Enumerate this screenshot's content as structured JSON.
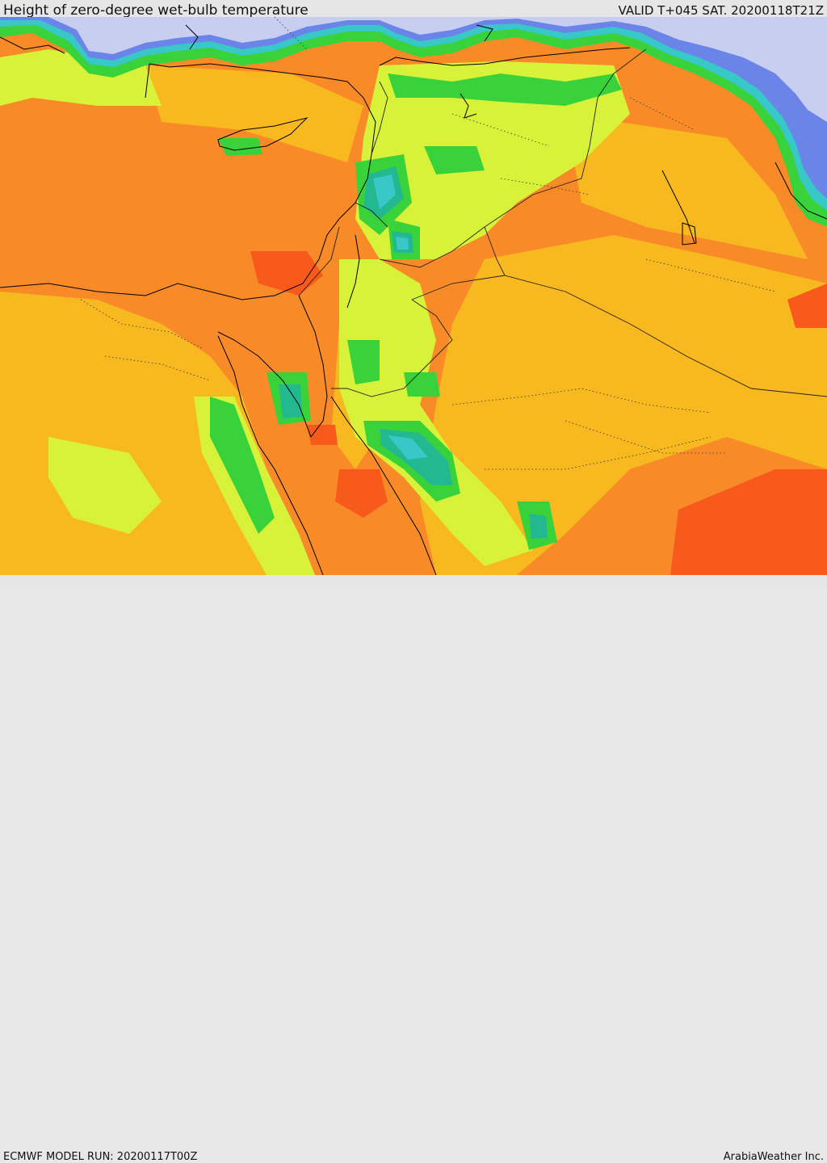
{
  "header": {
    "title": "Height of zero-degree wet-bulb temperature",
    "valid": "VALID T+045 SAT. 20200118T21Z"
  },
  "footer": {
    "model_run": "ECMWF MODEL RUN: 20200117T00Z",
    "credit": "ArabiaWeather Inc."
  },
  "palette": {
    "sea_low": "#c8cef0",
    "blue": "#6a84e8",
    "cyan": "#38c8c8",
    "teal": "#22b890",
    "green": "#3ad23a",
    "lightgreen": "#a8e832",
    "yellowgreen": "#d8f23a",
    "yellow": "#f0dc28",
    "orangeyellow": "#f8b820",
    "orange": "#f88a28",
    "redorange": "#f85a1c"
  }
}
